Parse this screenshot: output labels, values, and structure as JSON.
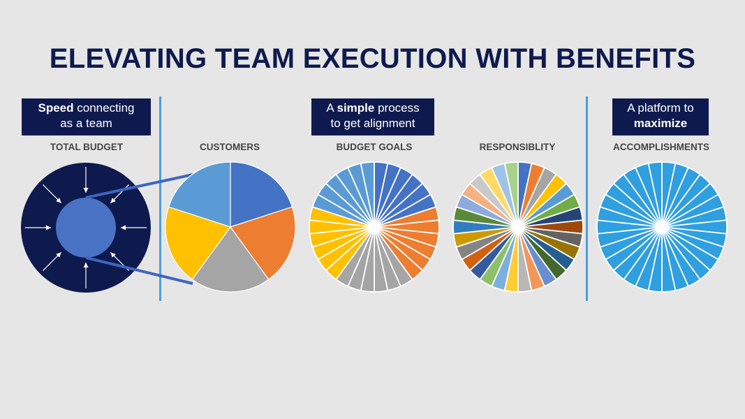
{
  "title": "ELEVATING TEAM EXECUTION WITH BENEFITS",
  "callouts": [
    {
      "bold": "Speed",
      "rest": " connecting",
      "line2": "as a team"
    },
    {
      "pre": "A ",
      "bold": "simple",
      "post": " process",
      "line2": "to get alignment"
    },
    {
      "line1": "A platform to",
      "bold": "maximize"
    }
  ],
  "labels": [
    "TOTAL BUDGET",
    "CUSTOMERS",
    "BUDGET GOALS",
    "RESPONSIBLITY",
    "ACCOMPLISHMENTS"
  ],
  "colors": {
    "navy": "#0e1a4e",
    "divider": "#4aa0dc",
    "inner_circle": "#4a72c4",
    "connector": "#3e66c0",
    "accomplishments": "#2f9fe0"
  },
  "chart_data": [
    {
      "type": "pie",
      "name": "customers",
      "values": [
        1,
        1,
        1,
        1,
        1
      ],
      "colors": [
        "#4472c4",
        "#ed7d31",
        "#a5a5a5",
        "#ffc000",
        "#5b9bd5"
      ]
    },
    {
      "type": "pie",
      "name": "budget goals",
      "values": [
        1,
        1,
        1,
        1,
        1,
        1,
        1,
        1,
        1,
        1,
        1,
        1,
        1,
        1,
        1,
        1,
        1,
        1,
        1,
        1,
        1,
        1,
        1,
        1,
        1,
        1,
        1,
        1,
        1,
        1
      ],
      "colors": [
        "#4472c4",
        "#4472c4",
        "#4472c4",
        "#4472c4",
        "#4472c4",
        "#4472c4",
        "#ed7d31",
        "#ed7d31",
        "#ed7d31",
        "#ed7d31",
        "#ed7d31",
        "#ed7d31",
        "#a5a5a5",
        "#a5a5a5",
        "#a5a5a5",
        "#a5a5a5",
        "#a5a5a5",
        "#a5a5a5",
        "#ffc000",
        "#ffc000",
        "#ffc000",
        "#ffc000",
        "#ffc000",
        "#ffc000",
        "#5b9bd5",
        "#5b9bd5",
        "#5b9bd5",
        "#5b9bd5",
        "#5b9bd5",
        "#5b9bd5"
      ]
    },
    {
      "type": "pie",
      "name": "responsiblity",
      "values": [
        1,
        1,
        1,
        1,
        1,
        1,
        1,
        1,
        1,
        1,
        1,
        1,
        1,
        1,
        1,
        1,
        1,
        1,
        1,
        1,
        1,
        1,
        1,
        1,
        1,
        1,
        1,
        1,
        1,
        1
      ],
      "colors": [
        "#4472c4",
        "#ed7d31",
        "#a5a5a5",
        "#ffc000",
        "#5b9bd5",
        "#70ad47",
        "#264478",
        "#9e480e",
        "#636363",
        "#997300",
        "#255e91",
        "#43682b",
        "#698ed0",
        "#f1975a",
        "#b7b7b7",
        "#ffcd33",
        "#7cafdd",
        "#8cc168",
        "#335aa1",
        "#d26012",
        "#848484",
        "#cc9a00",
        "#327dc2",
        "#5a8a39",
        "#8faadc",
        "#f4b183",
        "#c9c9c9",
        "#ffd966",
        "#9dc3e6",
        "#a9d18e"
      ]
    },
    {
      "type": "pie",
      "name": "accomplishments",
      "values": [
        1,
        1,
        1,
        1,
        1,
        1,
        1,
        1,
        1,
        1,
        1,
        1,
        1,
        1,
        1,
        1,
        1,
        1,
        1,
        1,
        1,
        1,
        1,
        1,
        1,
        1,
        1,
        1,
        1,
        1
      ],
      "colors": [
        "#2f9fe0"
      ]
    }
  ]
}
